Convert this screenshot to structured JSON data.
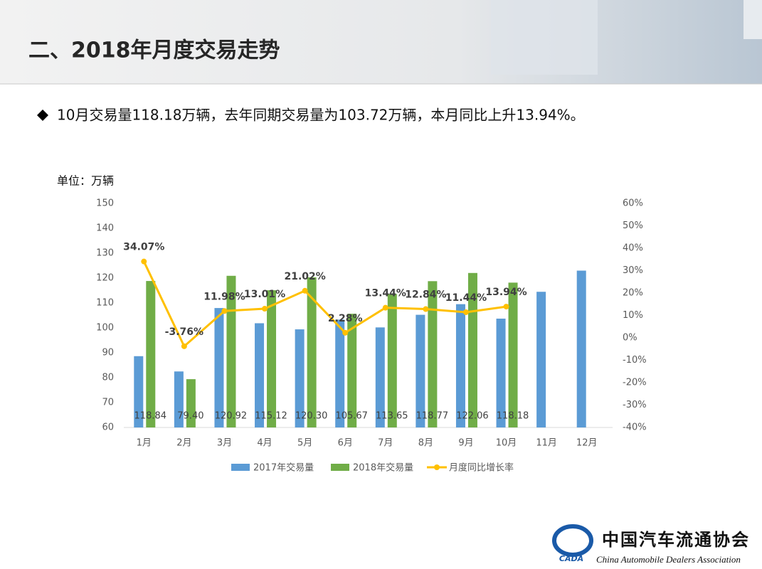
{
  "header": {
    "title": "二、2018年月度交易走势"
  },
  "bullet": "10月交易量118.18万辆，去年同期交易量为103.72万辆，本月同比上升13.94%。",
  "chart_data": {
    "type": "bar",
    "unit_label": "单位：万辆",
    "categories": [
      "1月",
      "2月",
      "3月",
      "4月",
      "5月",
      "6月",
      "7月",
      "8月",
      "9月",
      "10月",
      "11月",
      "12月"
    ],
    "series": [
      {
        "name": "2017年交易量",
        "type": "bar",
        "color": "#5b9bd5",
        "values": [
          88.64,
          82.5,
          107.98,
          101.87,
          99.41,
          103.31,
          100.19,
          105.26,
          109.53,
          103.72,
          114.5,
          123
        ]
      },
      {
        "name": "2018年交易量",
        "type": "bar",
        "color": "#70ad47",
        "values": [
          118.84,
          79.4,
          120.92,
          115.12,
          120.3,
          105.67,
          113.65,
          118.77,
          122.06,
          118.18,
          null,
          null
        ],
        "value_labels": [
          "118.84",
          "79.40",
          "120.92",
          "115.12",
          "120.30",
          "105.67",
          "113.65",
          "118.77",
          "122.06",
          "118.18",
          null,
          null
        ]
      },
      {
        "name": "月度同比增长率",
        "type": "line",
        "axis": "y2",
        "color": "#ffc000",
        "values": [
          34.07,
          -3.76,
          11.98,
          13.01,
          21.02,
          2.28,
          13.44,
          12.84,
          11.44,
          13.94,
          null,
          null
        ],
        "value_labels": [
          "34.07%",
          "-3.76%",
          "11.98%",
          "13.01%",
          "21.02%",
          "2.28%",
          "13.44%",
          "12.84%",
          "11.44%",
          "13.94%",
          null,
          null
        ]
      }
    ],
    "ylim": [
      60,
      150
    ],
    "yticks": [
      60,
      70,
      80,
      90,
      100,
      110,
      120,
      130,
      140,
      150
    ],
    "y2lim": [
      -40,
      60
    ],
    "y2ticks": [
      {
        "value": -40,
        "label": "-40%"
      },
      {
        "value": -30,
        "label": "-30%"
      },
      {
        "value": -20,
        "label": "-20%"
      },
      {
        "value": -10,
        "label": "-10%"
      },
      {
        "value": 0,
        "label": "0%"
      },
      {
        "value": 10,
        "label": "10%"
      },
      {
        "value": 20,
        "label": "20%"
      },
      {
        "value": 30,
        "label": "30%"
      },
      {
        "value": 40,
        "label": "40%"
      },
      {
        "value": 50,
        "label": "50%"
      },
      {
        "value": 60,
        "label": "60%"
      }
    ],
    "grid": false,
    "legend": "bottom"
  },
  "logo": {
    "mark": "CADA",
    "name": "中国汽车流通协会",
    "english": "China Automobile Dealers Association"
  }
}
